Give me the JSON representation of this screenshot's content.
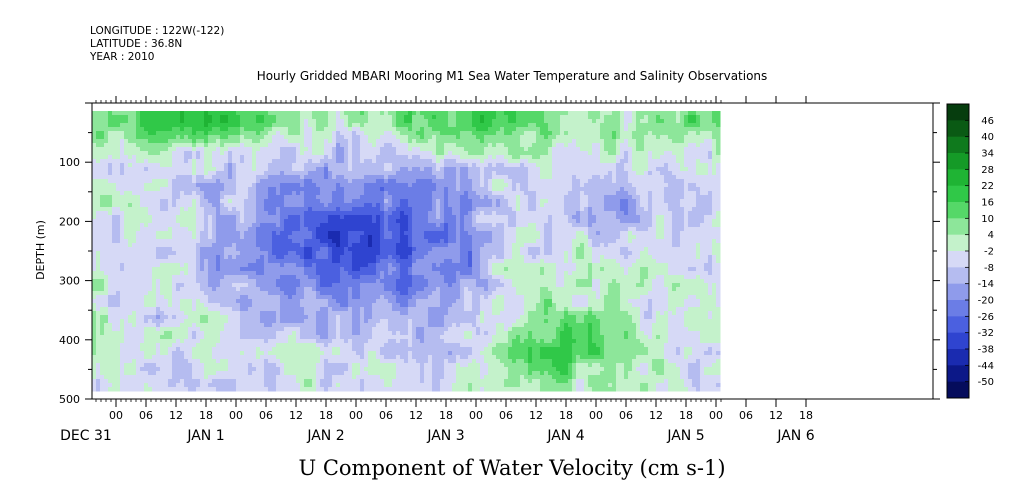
{
  "header": {
    "longitude": "LONGITUDE : 122W(-122)",
    "latitude": "LATITUDE : 36.8N",
    "year": "YEAR : 2010"
  },
  "chart_data": {
    "type": "heatmap",
    "title": "Hourly Gridded MBARI Mooring M1 Sea Water Temperature and Salinity Observations",
    "xlabel": "U Component of Water Velocity (cm s-1)",
    "ylabel": "DEPTH (m)",
    "ylim": [
      500,
      0
    ],
    "y_reversed": true,
    "y_ticks": [
      100,
      200,
      300,
      400,
      500
    ],
    "x_range_hours": [
      -21,
      121
    ],
    "x_hour_ticks": [
      {
        "h": 0,
        "label": "00"
      },
      {
        "h": 6,
        "label": "06"
      },
      {
        "h": 12,
        "label": "12"
      },
      {
        "h": 18,
        "label": "18"
      },
      {
        "h": 24,
        "label": "00"
      },
      {
        "h": 30,
        "label": "06"
      },
      {
        "h": 36,
        "label": "12"
      },
      {
        "h": 42,
        "label": "18"
      },
      {
        "h": 48,
        "label": "00"
      },
      {
        "h": 54,
        "label": "06"
      },
      {
        "h": 60,
        "label": "12"
      },
      {
        "h": 66,
        "label": "18"
      },
      {
        "h": 72,
        "label": "00"
      },
      {
        "h": 78,
        "label": "06"
      },
      {
        "h": 84,
        "label": "12"
      },
      {
        "h": 90,
        "label": "18"
      },
      {
        "h": 96,
        "label": "00"
      },
      {
        "h": 102,
        "label": "06"
      },
      {
        "h": 108,
        "label": "12"
      },
      {
        "h": 114,
        "label": "18"
      },
      {
        "h": 120,
        "label": "00"
      },
      {
        "h": 126,
        "label": "06"
      },
      {
        "h": 132,
        "label": "12"
      },
      {
        "h": 138,
        "label": "18"
      }
    ],
    "x_day_labels": [
      {
        "h": -6,
        "label": "DEC 31"
      },
      {
        "h": 18,
        "label": "JAN  1"
      },
      {
        "h": 42,
        "label": "JAN  2"
      },
      {
        "h": 66,
        "label": "JAN  3"
      },
      {
        "h": 90,
        "label": "JAN  4"
      },
      {
        "h": 114,
        "label": "JAN  5"
      },
      {
        "h": 136,
        "label": "JAN  6"
      }
    ],
    "colorbar": {
      "levels": [
        46,
        40,
        34,
        28,
        22,
        16,
        10,
        4,
        -2,
        -8,
        -14,
        -20,
        -26,
        -32,
        -38,
        -44,
        -50
      ],
      "colors": [
        "#063d0e",
        "#0a5a14",
        "#0f7a1d",
        "#159a27",
        "#1fb434",
        "#30c848",
        "#55d868",
        "#8de69a",
        "#c4f2cb",
        "#d6d9f6",
        "#b5bcf0",
        "#8f9beb",
        "#6b7de6",
        "#4b60e0",
        "#2f44d0",
        "#1a2bb0",
        "#0c1888",
        "#050c5c"
      ],
      "label_levels": [
        46,
        40,
        34,
        28,
        22,
        16,
        10,
        4,
        -2,
        -8,
        -14,
        -20,
        -26,
        -32,
        -38,
        -44,
        -50
      ]
    },
    "grid": false
  }
}
